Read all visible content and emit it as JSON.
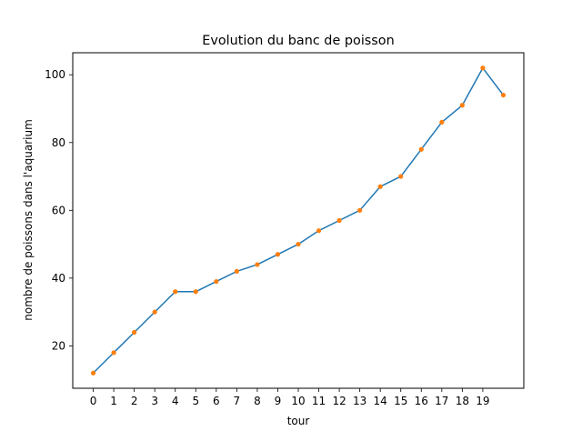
{
  "chart_data": {
    "type": "line",
    "title": "Evolution du banc de poisson",
    "xlabel": "tour",
    "ylabel": "nombre de poissons dans l'aquarium",
    "x": [
      0,
      1,
      2,
      3,
      4,
      5,
      6,
      7,
      8,
      9,
      10,
      11,
      12,
      13,
      14,
      15,
      16,
      17,
      18,
      19,
      20
    ],
    "series": [
      {
        "values": [
          12,
          18,
          24,
          30,
          36,
          36,
          39,
          42,
          44,
          47,
          50,
          54,
          57,
          60,
          67,
          70,
          78,
          86,
          91,
          102,
          94
        ],
        "line_color": "#1f77b4",
        "marker_color": "#ff7f0e"
      }
    ],
    "xticks": [
      0,
      1,
      2,
      3,
      4,
      5,
      6,
      7,
      8,
      9,
      10,
      11,
      12,
      13,
      14,
      15,
      16,
      17,
      18,
      19
    ],
    "yticks": [
      20,
      40,
      60,
      80,
      100
    ],
    "xlim": [
      -1,
      21
    ],
    "ylim": [
      7.5,
      106.5
    ],
    "grid": false,
    "legend": false
  }
}
